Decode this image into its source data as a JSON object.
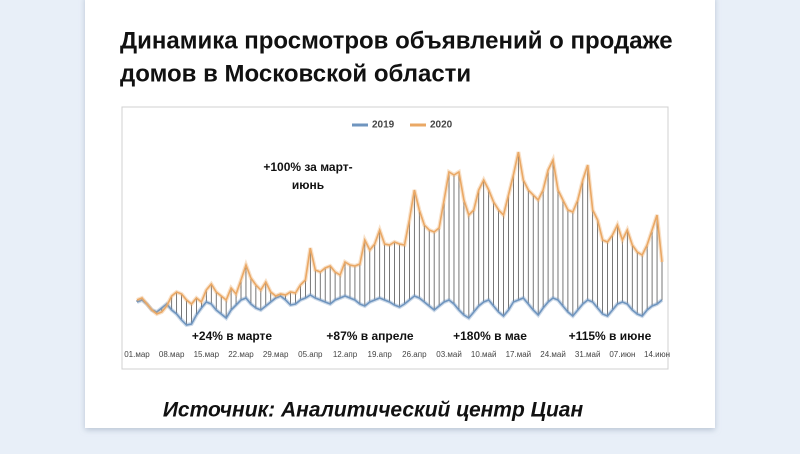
{
  "chart_data": {
    "type": "line",
    "title": [
      "Динамика просмотров объявлений о продаже",
      "домов в Московской области"
    ],
    "source": "Источник: Аналитический центр Циан",
    "annotations": [
      "+100% за март-",
      "июнь",
      "+24% в марте",
      "+87% в апреле",
      "+180% в мае",
      "+115% в июне"
    ],
    "categories": [
      "01.мар",
      null,
      null,
      null,
      null,
      null,
      null,
      "08.мар",
      null,
      null,
      null,
      null,
      null,
      null,
      "15.мар",
      null,
      null,
      null,
      null,
      null,
      null,
      "22.мар",
      null,
      null,
      null,
      null,
      null,
      null,
      "29.мар",
      null,
      null,
      null,
      null,
      null,
      null,
      "05.апр",
      null,
      null,
      null,
      null,
      null,
      null,
      "12.апр",
      null,
      null,
      null,
      null,
      null,
      null,
      "19.апр",
      null,
      null,
      null,
      null,
      null,
      null,
      "26.апр",
      null,
      null,
      null,
      null,
      null,
      null,
      "03.май",
      null,
      null,
      null,
      null,
      null,
      null,
      "10.май",
      null,
      null,
      null,
      null,
      null,
      null,
      "17.май",
      null,
      null,
      null,
      null,
      null,
      null,
      "24.май",
      null,
      null,
      null,
      null,
      null,
      null,
      "31.май",
      null,
      null,
      null,
      null,
      null,
      null,
      "07.июн",
      null,
      null,
      null,
      null,
      null,
      null,
      "14.июн",
      null
    ],
    "series": [
      {
        "name": "2019",
        "color": "#6f95bf",
        "values": [
          38,
          40,
          36,
          30,
          28,
          32,
          36,
          30,
          26,
          20,
          15,
          16,
          25,
          32,
          38,
          36,
          30,
          26,
          22,
          30,
          35,
          40,
          42,
          36,
          32,
          30,
          34,
          38,
          42,
          44,
          40,
          35,
          36,
          40,
          42,
          45,
          42,
          40,
          38,
          36,
          40,
          42,
          44,
          42,
          40,
          36,
          34,
          38,
          40,
          42,
          40,
          38,
          35,
          33,
          36,
          40,
          44,
          42,
          38,
          34,
          30,
          34,
          38,
          40,
          36,
          30,
          25,
          22,
          28,
          34,
          38,
          40,
          34,
          28,
          24,
          30,
          38,
          40,
          42,
          36,
          30,
          25,
          32,
          38,
          42,
          40,
          34,
          28,
          24,
          30,
          36,
          40,
          38,
          32,
          26,
          24,
          30,
          36,
          38,
          36,
          30,
          26,
          24,
          30,
          34,
          36,
          40
        ]
      },
      {
        "name": "2020",
        "color": "#eaa865",
        "values": [
          40,
          42,
          36,
          30,
          26,
          28,
          34,
          44,
          48,
          46,
          40,
          36,
          42,
          38,
          50,
          56,
          48,
          44,
          40,
          52,
          46,
          60,
          75,
          62,
          55,
          50,
          58,
          48,
          44,
          46,
          45,
          48,
          47,
          55,
          60,
          92,
          70,
          68,
          72,
          74,
          68,
          65,
          78,
          75,
          74,
          76,
          100,
          90,
          96,
          110,
          96,
          95,
          98,
          96,
          95,
          120,
          150,
          130,
          115,
          110,
          108,
          112,
          140,
          168,
          165,
          168,
          140,
          125,
          130,
          150,
          160,
          150,
          138,
          130,
          125,
          145,
          165,
          188,
          160,
          150,
          145,
          140,
          150,
          170,
          180,
          150,
          140,
          130,
          128,
          140,
          160,
          175,
          130,
          120,
          100,
          98,
          105,
          115,
          100,
          110,
          95,
          88,
          85,
          95,
          110,
          125,
          78
        ]
      }
    ],
    "ylim": [
      0,
      200
    ],
    "grid": false,
    "legend": "top"
  }
}
